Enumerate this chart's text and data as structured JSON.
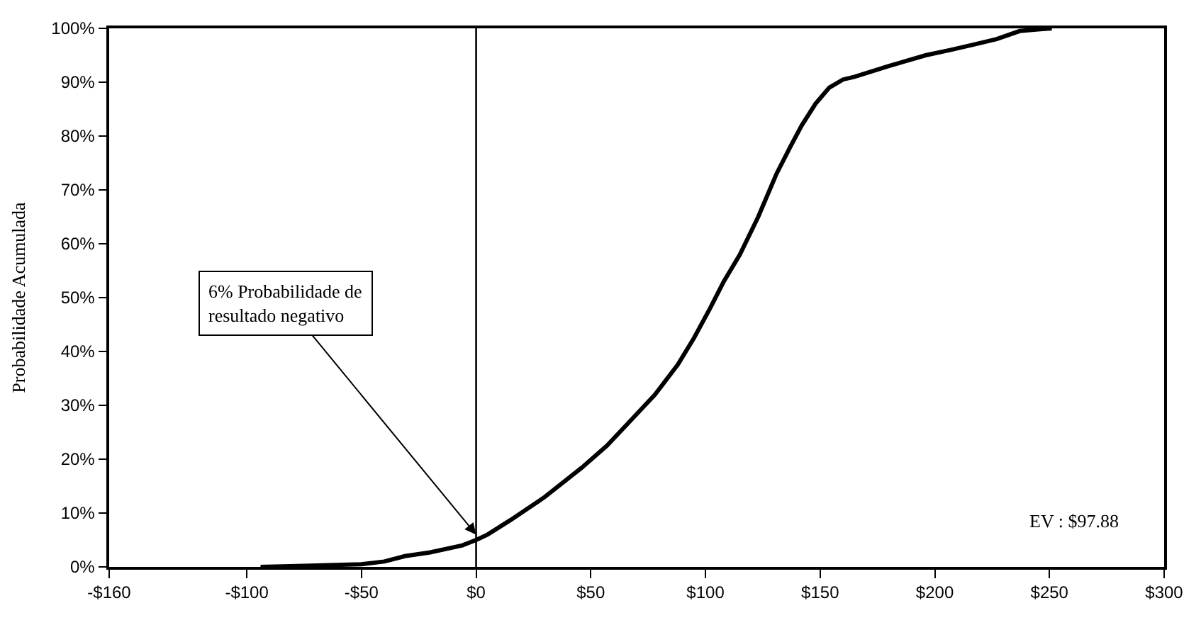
{
  "chart_data": {
    "type": "line",
    "ylabel": "Probabilidade Acumulada",
    "x": [
      -94,
      -75,
      -50,
      -40,
      -31,
      -20,
      -6,
      0,
      5,
      15,
      30,
      46,
      57,
      67,
      78,
      88,
      95,
      102,
      108,
      115,
      123,
      131,
      137,
      142,
      148,
      154,
      160,
      165,
      180,
      196,
      207,
      217,
      227,
      237,
      245,
      251
    ],
    "series": [
      {
        "color": "#000000",
        "values": [
          0,
          0.2,
          0.5,
          1,
          2,
          2.7,
          4,
          5,
          6,
          8.7,
          13,
          18.4,
          22.5,
          27,
          32,
          37.6,
          42.5,
          48,
          53,
          58,
          65,
          73,
          78,
          82,
          86,
          89,
          90.5,
          91,
          93,
          95,
          96,
          97,
          98,
          99.5,
          99.8,
          100
        ]
      }
    ],
    "xlim": [
      -160,
      300
    ],
    "xticks": [
      {
        "value": -160,
        "label": "-$160"
      },
      {
        "value": -100,
        "label": "-$100"
      },
      {
        "value": -50,
        "label": "-$50"
      },
      {
        "value": 0,
        "label": "$0"
      },
      {
        "value": 50,
        "label": "$50"
      },
      {
        "value": 100,
        "label": "$100"
      },
      {
        "value": 150,
        "label": "$150"
      },
      {
        "value": 200,
        "label": "$200"
      },
      {
        "value": 250,
        "label": "$250"
      },
      {
        "value": 300,
        "label": "$300"
      }
    ],
    "ylim": [
      0,
      100
    ],
    "yticks": [
      {
        "value": 0,
        "label": "0%"
      },
      {
        "value": 10,
        "label": "10%"
      },
      {
        "value": 20,
        "label": "20%"
      },
      {
        "value": 30,
        "label": "30%"
      },
      {
        "value": 40,
        "label": "40%"
      },
      {
        "value": 50,
        "label": "50%"
      },
      {
        "value": 60,
        "label": "60%"
      },
      {
        "value": 70,
        "label": "70%"
      },
      {
        "value": 80,
        "label": "80%"
      },
      {
        "value": 90,
        "label": "90%"
      },
      {
        "value": 100,
        "label": "100%"
      }
    ],
    "ref_lines": [
      {
        "axis": "x",
        "value": 0,
        "color": "#000000"
      }
    ],
    "annotations": [
      {
        "text": "6% Probabilidade de\nresultado negativo",
        "x": 0,
        "y": 6
      },
      "EV : $97.88"
    ],
    "marker": "none",
    "line_style": "solid"
  }
}
